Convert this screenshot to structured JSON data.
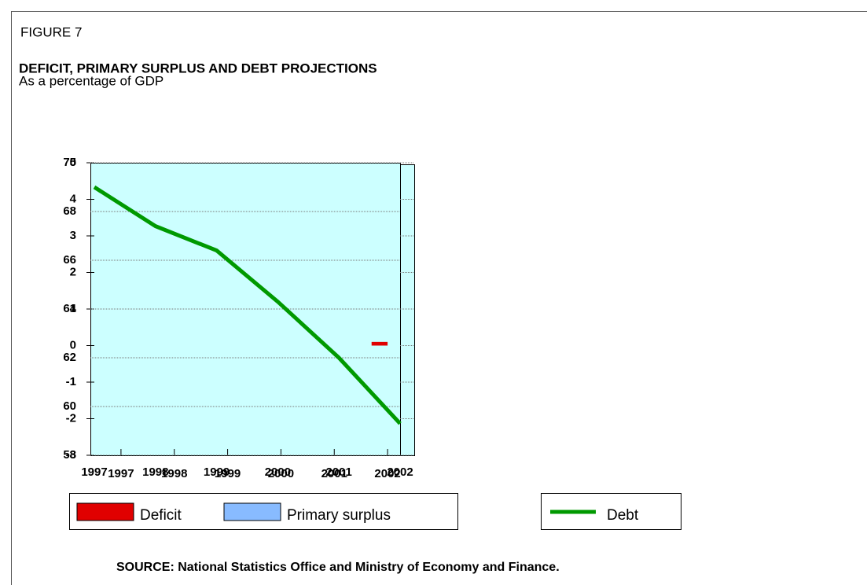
{
  "header": {
    "figure": "FIGURE 7",
    "title": "DEFICIT, PRIMARY SURPLUS AND DEBT PROJECTIONS",
    "subtitle": "As a percentage of GDP"
  },
  "source": "SOURCE: National Statistics Office and Ministry of Economy and Finance.",
  "chart_data": [
    {
      "type": "bar",
      "categories": [
        "1997",
        "1998",
        "1999",
        "2000",
        "2001",
        "2002"
      ],
      "series": [
        {
          "name": "Deficit",
          "color": "#e00000",
          "values": [
            0,
            0,
            0,
            0,
            0,
            0.1
          ]
        },
        {
          "name": "Primary surplus",
          "color": "#88bbff",
          "values": [
            0,
            0,
            0,
            0,
            0,
            0
          ]
        }
      ],
      "ylim": [
        -3,
        5
      ],
      "yticks": [
        -3,
        -2,
        -1,
        0,
        1,
        2,
        3,
        4,
        5
      ],
      "grid": true
    },
    {
      "type": "line",
      "categories": [
        "1997",
        "1998",
        "1999",
        "2000",
        "2001",
        "2002"
      ],
      "series": [
        {
          "name": "Debt",
          "color": "#009900",
          "values": [
            69.0,
            67.4,
            66.4,
            64.3,
            62.0,
            59.3
          ]
        }
      ],
      "ylim": [
        58,
        70
      ],
      "yticks": [
        58,
        60,
        62,
        64,
        66,
        68,
        70
      ],
      "grid": true
    }
  ]
}
